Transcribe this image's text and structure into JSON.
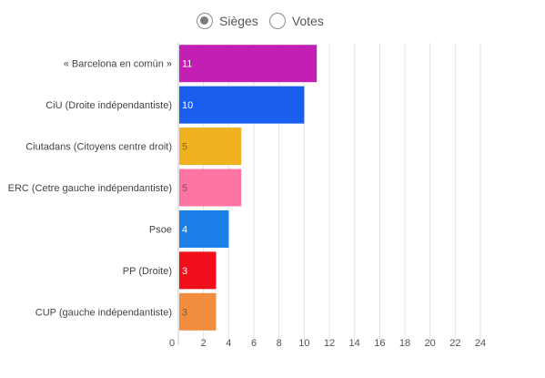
{
  "toggle": {
    "options": [
      {
        "label": "Sièges",
        "selected": true
      },
      {
        "label": "Votes",
        "selected": false
      }
    ]
  },
  "chart_data": {
    "type": "bar",
    "orientation": "horizontal",
    "categories": [
      "« Barcelona en comùn »",
      "CiU (Droite indépendantiste)",
      "Ciutadans (Citoyens centre droit)",
      "ERC (Cetre gauche indépendantiste)",
      "Psoe",
      "PP (Droite)",
      "CUP (gauche indépendantiste)"
    ],
    "values": [
      11,
      10,
      5,
      5,
      4,
      3,
      3
    ],
    "colors": [
      "#c41fb4",
      "#1a5ef0",
      "#f0b21f",
      "#fd74a5",
      "#1b7fea",
      "#f00f1a",
      "#f28d3e"
    ],
    "value_label_colors": [
      "#ffffff",
      "#ffffff",
      "#8a6a18",
      "#8a4466",
      "#ffffff",
      "#ffffff",
      "#8a5a30"
    ],
    "xlim": [
      0,
      24
    ],
    "xticks": [
      0,
      2,
      4,
      6,
      8,
      10,
      12,
      14,
      16,
      18,
      20,
      22,
      24
    ],
    "grid": true,
    "title": "",
    "xlabel": "",
    "ylabel": ""
  }
}
